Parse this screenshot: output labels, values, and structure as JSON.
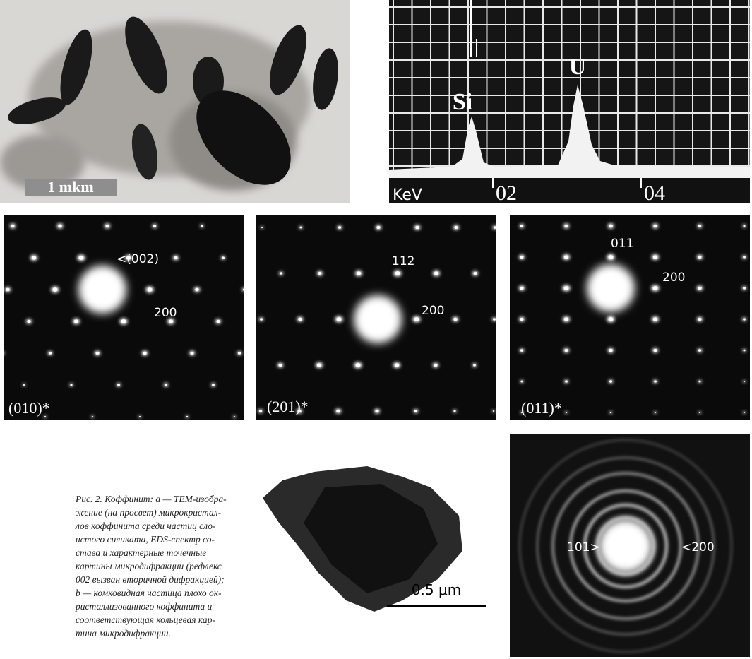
{
  "figure": {
    "tem": {
      "scale_label": "1 mkm"
    },
    "eds": {
      "peaks": [
        "Si",
        "U"
      ],
      "axis_unit": "KeV",
      "axis_ticks": [
        "02",
        "04"
      ]
    },
    "diffraction": [
      {
        "labels": [
          "<(002)",
          "200"
        ],
        "zone": "(010)*"
      },
      {
        "labels": [
          "112",
          "200"
        ],
        "zone": "(201)*"
      },
      {
        "labels": [
          "011",
          "200"
        ],
        "zone": "(011)*"
      }
    ],
    "particle": {
      "scale_label": "0.5 μm"
    },
    "rings": {
      "labels": [
        "101>",
        "<200"
      ]
    },
    "caption": [
      "Рис. 2. Коффинит: a — ТЕМ-изобра-",
      "жение (на просвет) микрокристал-",
      "лов коффинита среди частиц сло-",
      "истого силиката, EDS-спектр со-",
      "става и характерные точечные",
      "картины микродифракции (рефлекс",
      "002 вызван вторичной дифракцией);",
      "b — комковидная частица плохо ок-",
      "ристаллизованного коффинита и",
      "соответствующая кольцевая кар-",
      "тина микродифракции."
    ]
  }
}
